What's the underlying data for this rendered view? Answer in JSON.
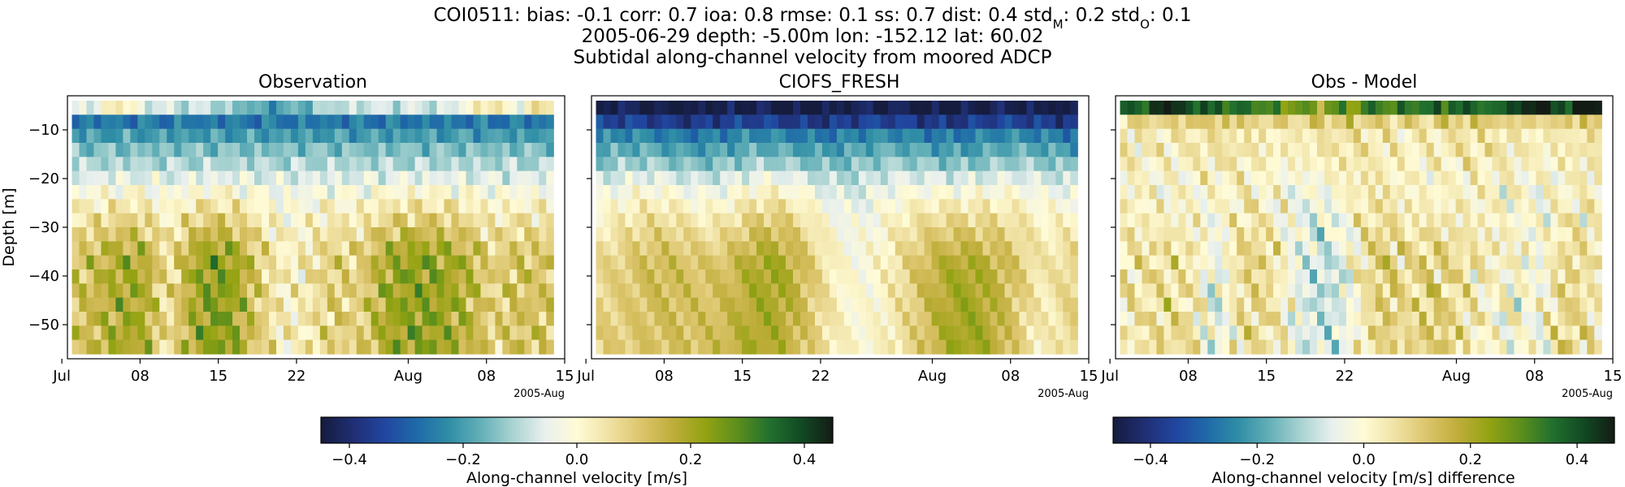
{
  "figure": {
    "title_line1": "COI0511: bias: -0.1  corr: 0.7  ioa: 0.8  rmse: 0.1  ss: 0.7  dist: 0.4  std",
    "title_stdM_sub": "M",
    "title_mid": ": 0.2  std",
    "title_stdO_sub": "O",
    "title_end": ": 0.1",
    "title_line2": "2005-06-29 depth: -5.00m lon: -152.12 lat: 60.02",
    "title_line3": "Subtidal along-channel velocity from moored ADCP"
  },
  "colormap": [
    "#151c3d",
    "#202e73",
    "#2146a0",
    "#1f6aa8",
    "#2f8ea6",
    "#64b0b8",
    "#a9d3d1",
    "#e9f0ee",
    "#fffbd6",
    "#f0e2a4",
    "#dcc56c",
    "#bfad3a",
    "#93a312",
    "#5d8f1c",
    "#22712e",
    "#124a24",
    "#131c14"
  ],
  "chart_data": [
    {
      "type": "heatmap",
      "title": "Observation",
      "ylabel": "Depth [m]",
      "ylim": [
        -57,
        -3
      ],
      "yticks": [
        -10,
        -20,
        -30,
        -40,
        -50
      ],
      "xticklabels": [
        "Jul",
        "08",
        "15",
        "22",
        "Aug",
        "08",
        "15"
      ],
      "x_offset_label": "2005-Aug",
      "time_range": [
        "2005-06-30",
        "2005-08-13"
      ],
      "depth_range_m": [
        -56,
        -4
      ],
      "color_range": [
        -0.45,
        0.45
      ],
      "value_range_approx": [
        -0.35,
        0.3
      ]
    },
    {
      "type": "heatmap",
      "title": "CIOFS_FRESH",
      "ylim": [
        -57,
        -3
      ],
      "yticks": [
        -10,
        -20,
        -30,
        -40,
        -50
      ],
      "xticklabels": [
        "Jul",
        "08",
        "15",
        "22",
        "Aug",
        "08",
        "15"
      ],
      "x_offset_label": "2005-Aug",
      "time_range": [
        "2005-06-30",
        "2005-08-13"
      ],
      "depth_range_m": [
        -56,
        -4
      ],
      "color_range": [
        -0.45,
        0.45
      ],
      "value_range_approx": [
        -0.45,
        0.25
      ]
    },
    {
      "type": "heatmap",
      "title": "Obs - Model",
      "ylim": [
        -57,
        -3
      ],
      "yticks": [
        -10,
        -20,
        -30,
        -40,
        -50
      ],
      "xticklabels": [
        "Jul",
        "08",
        "15",
        "22",
        "Aug",
        "08",
        "15"
      ],
      "x_offset_label": "2005-Aug",
      "time_range": [
        "2005-06-30",
        "2005-08-13"
      ],
      "depth_range_m": [
        -56,
        -4
      ],
      "color_range": [
        -0.47,
        0.47
      ],
      "value_range_approx": [
        -0.1,
        0.45
      ]
    }
  ],
  "colorbars": [
    {
      "label": "Along-channel velocity [m/s]",
      "range": [
        -0.45,
        0.45
      ],
      "ticks": [
        -0.4,
        -0.2,
        0.0,
        0.2,
        0.4
      ],
      "ticklabels": [
        "−0.4",
        "−0.2",
        "0.0",
        "0.2",
        "0.4"
      ]
    },
    {
      "label": "Along-channel velocity [m/s] difference",
      "range": [
        -0.47,
        0.47
      ],
      "ticks": [
        -0.4,
        -0.2,
        0.0,
        0.2,
        0.4
      ],
      "ticklabels": [
        "−0.4",
        "−0.2",
        "0.0",
        "0.2",
        "0.4"
      ]
    }
  ]
}
